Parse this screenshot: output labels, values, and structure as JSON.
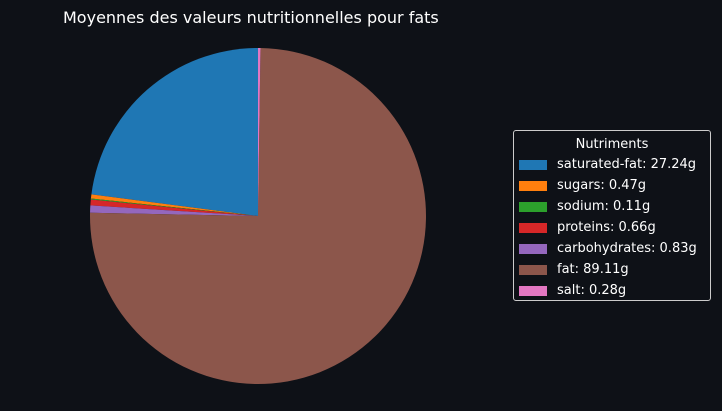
{
  "chart_data": {
    "type": "pie",
    "title": "Moyennes des valeurs nutritionnelles pour fats",
    "legend_title": "Nutriments",
    "legend_position": "right",
    "start_angle_deg": 90,
    "direction": "counterclockwise",
    "slices": [
      {
        "label": "saturated-fat: 27.24g",
        "name": "saturated-fat",
        "value": 27.24,
        "color": "#1f77b4"
      },
      {
        "label": "sugars: 0.47g",
        "name": "sugars",
        "value": 0.47,
        "color": "#ff7f0e"
      },
      {
        "label": "sodium: 0.11g",
        "name": "sodium",
        "value": 0.11,
        "color": "#2ca02c"
      },
      {
        "label": "proteins: 0.66g",
        "name": "proteins",
        "value": 0.66,
        "color": "#d62728"
      },
      {
        "label": "carbohydrates: 0.83g",
        "name": "carbohydrates",
        "value": 0.83,
        "color": "#9467bd"
      },
      {
        "label": "fat: 89.11g",
        "name": "fat",
        "value": 89.11,
        "color": "#8c564b"
      },
      {
        "label": "salt: 0.28g",
        "name": "salt",
        "value": 0.28,
        "color": "#e377c2"
      }
    ]
  },
  "colors": {
    "background": "#0e1117",
    "text": "#ffffff",
    "legend_border": "#cccccc"
  }
}
